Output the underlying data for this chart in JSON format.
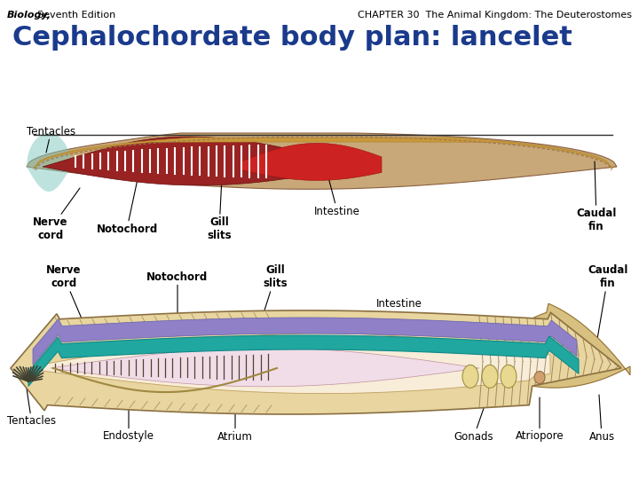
{
  "bg_color": "#ffffff",
  "header_left_italic": "Biology,",
  "header_left_normal": " Seventh Edition",
  "header_right": "CHAPTER 30  The Animal Kingdom: The Deuterostomes",
  "main_title": "Cephalochordate body plan: lancelet",
  "main_title_color": "#1a3a8c",
  "header_font_size": 8,
  "main_title_font_size": 22,
  "fig_width": 7.2,
  "fig_height": 5.4,
  "dpi": 100
}
